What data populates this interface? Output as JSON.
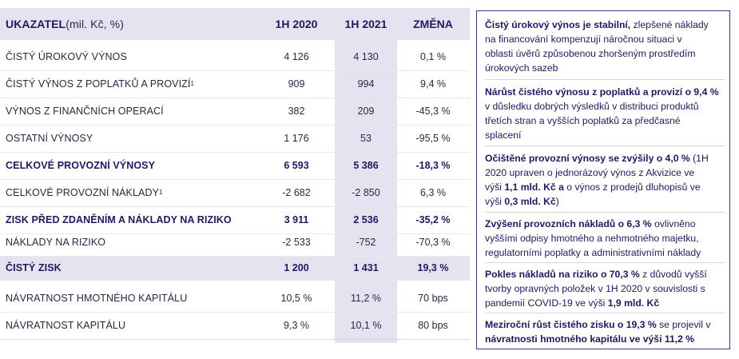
{
  "table": {
    "header": {
      "label_bold": "UKAZATEL",
      "label_unit": " (mil. Kč, %)",
      "c1": "1H 2020",
      "c2": "1H 2021",
      "c3": "ZMĚNA"
    },
    "rows": [
      {
        "label": "ČISTÝ ÚROKOVÝ VÝNOS",
        "sup": "",
        "c1": "4 126",
        "c2": "4 130",
        "c3": "0,1 %"
      },
      {
        "label": "ČISTÝ VÝNOS Z POPLATKŮ A PROVIZÍ",
        "sup": "1",
        "c1": "909",
        "c2": "994",
        "c3": "9,4 %"
      },
      {
        "label": "VÝNOS Z FINANČNÍCH OPERACÍ",
        "sup": "",
        "c1": "382",
        "c2": "209",
        "c3": "-45,3 %"
      },
      {
        "label": "OSTATNÍ VÝNOSY",
        "sup": "",
        "c1": "1 176",
        "c2": "53",
        "c3": "-95,5 %"
      },
      {
        "label": "CELKOVÉ PROVOZNÍ VÝNOSY",
        "sup": "",
        "c1": "6 593",
        "c2": "5 386",
        "c3": "-18,3 %"
      },
      {
        "label": "CELKOVÉ PROVOZNÍ NÁKLADY",
        "sup": "1",
        "c1": "-2 682",
        "c2": "-2 850",
        "c3": "6,3 %"
      },
      {
        "label": "ZISK PŘED ZDANĚNÍM A NÁKLADY NA RIZIKO",
        "sup": "",
        "c1": "3 911",
        "c2": "2 536",
        "c3": "-35,2 %"
      },
      {
        "label": "NÁKLADY NA RIZIKO",
        "sup": "",
        "c1": "-2 533",
        "c2": "-752",
        "c3": "-70,3 %"
      },
      {
        "label": "ČISTÝ ZISK",
        "sup": "",
        "c1": "1 200",
        "c2": "1 431",
        "c3": "19,3 %"
      },
      {
        "label": "NÁVRATNOST HMOTNÉHO KAPITÁLU",
        "sup": "",
        "c1": "10,5 %",
        "c2": "11,2 %",
        "c3": "70 bps"
      },
      {
        "label": "NÁVRATNOST KAPITÁLU",
        "sup": "",
        "c1": "9,3 %",
        "c2": "10,1 %",
        "c3": "80 bps"
      }
    ]
  },
  "notes": {
    "n1": {
      "bold": "Čistý úrokový výnos je stabilní,",
      "text1": " zlepšené náklady",
      "l2": "na financování kompenzují náročnou situaci v",
      "l3": "oblasti úvěrů způsobenou zhoršeným prostředím",
      "l4": "úrokových sazeb"
    },
    "n2": {
      "bold": "Nárůst čistého výnosu z poplatků a provizí o 9,4 %",
      "l2": "v důsledku dobrých výsledků v distribuci produktů",
      "l3": "třetích stran a vyšších poplatků za předčasné",
      "l4": "splacení"
    },
    "n3": {
      "bold": "Očištěné provozní výnosy se zvýšily o 4,0 %",
      "text1": "  (1H",
      "l2": "2020 upraven o jednorázový výnos z Akvizice ve",
      "l3a": "výši ",
      "l3b": "1,1 mld. Kč a",
      "l3c": " o výnos z prodejů dluhopisů ve",
      "l4a": "výši ",
      "l4b": "0,3 mld. Kč",
      "l4c": ")"
    },
    "n4": {
      "bold": "Zvýšení provozních nákladů o 6,3 %",
      "text1": "  ovlivněno",
      "l2": "vyššími odpisy hmotného a nehmotného majetku,",
      "l3": "regulatorními poplatky a administrativními náklady"
    },
    "n5": {
      "bold": "Pokles nákladů na riziko o 70,3 %",
      "text1": " z důvodů vyšší",
      "l2": "tvorby opravných položek v 1H 2020  v souvislosti s",
      "l3a": "pandemií COVID-19 ve výši ",
      "l3b": "1,9 mld. Kč"
    },
    "n6": {
      "bold": "Meziroční růst čistého zisku o 19,3 %",
      "text1": " se projevil v",
      "l2": "návratnosti hmotného kapitálu ve výši 11,2 %"
    }
  }
}
